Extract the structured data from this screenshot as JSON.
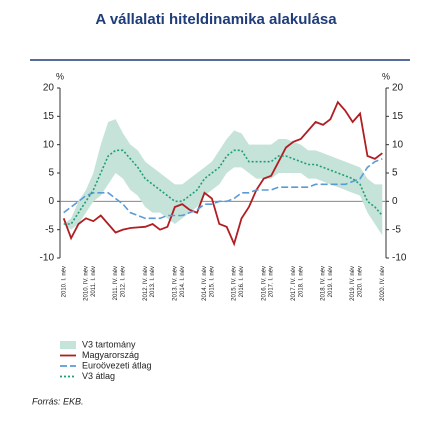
{
  "chart_data": {
    "type": "line",
    "title": "A vállalati hiteldinamika alakulása",
    "y_label": "%",
    "y2_label": "%",
    "source": "Forrás: EKB.",
    "categories": [
      "2010. I. név",
      null,
      null,
      "2010. IV. név",
      "2011. I. név",
      null,
      null,
      "2011. IV. név",
      "2012. I. név",
      null,
      null,
      "2012. IV. név",
      "2013. I. név",
      null,
      null,
      "2013. IV. név",
      "2014. I. név",
      null,
      null,
      "2014. IV. név",
      "2015. I. név",
      null,
      null,
      "2015. IV. név",
      "2016. I. név",
      null,
      null,
      "2016. IV. név",
      "2017. I. név",
      null,
      null,
      "2017. IV. név",
      "2018. I. név",
      null,
      null,
      "2018. IV. név",
      "2019. I. név",
      null,
      null,
      "2019. IV. név",
      "2020. I. név",
      null,
      null,
      "2020. IV. név"
    ],
    "band": {
      "name": "V3 tartomány",
      "color": "#c5e3d8",
      "high": [
        -4,
        -3,
        0,
        2,
        5,
        10,
        14,
        14.5,
        12,
        10,
        9,
        7,
        6,
        5,
        4,
        3,
        3,
        4,
        5,
        6,
        7,
        9,
        11,
        12.5,
        12,
        10,
        10,
        10,
        10,
        11,
        11,
        10.5,
        10,
        9,
        9,
        8.5,
        8,
        7.5,
        7,
        6.5,
        6,
        4,
        3,
        3
      ],
      "low": [
        -4,
        -5,
        -4,
        -2,
        0,
        1,
        3,
        5,
        4,
        2,
        1,
        -1,
        -2,
        -2,
        -3,
        -4,
        -3,
        -2,
        -1,
        1,
        2,
        3,
        5,
        6,
        6,
        5,
        4,
        4,
        4,
        5,
        5,
        5,
        5,
        4,
        4,
        3.5,
        3,
        2.5,
        2,
        1.5,
        1,
        -2,
        -4,
        -6
      ]
    },
    "series": [
      {
        "name": "Magyarország",
        "color": "#b01e23",
        "dash": "solid",
        "values": [
          -3,
          -6.5,
          -4,
          -3,
          -3.5,
          -2.5,
          -4,
          -5.5,
          -5,
          -4.7,
          -4.6,
          -4.5,
          -4,
          -5,
          -4.5,
          -1,
          -0.5,
          -1.5,
          -2,
          1.5,
          0.5,
          -4,
          -4.5,
          -7.5,
          -3,
          -1,
          2,
          4,
          4.5,
          7,
          9.5,
          10.5,
          11,
          12.5,
          14,
          13.5,
          14.5,
          17.5,
          16,
          14,
          15.5,
          8,
          7.5,
          8.5
        ]
      },
      {
        "name": "Euroövezeti átlag",
        "color": "#5b9bd5",
        "dash": "dashed",
        "values": [
          -2,
          -1,
          0,
          1,
          1.5,
          1.5,
          1.5,
          0.5,
          -0.5,
          -2,
          -2.5,
          -3,
          -3,
          -3,
          -2.5,
          -2.5,
          -2.5,
          -2,
          -1.5,
          -0.5,
          -0.5,
          0,
          0,
          0.5,
          1.5,
          1.5,
          2,
          2,
          2,
          2.5,
          2.5,
          2.5,
          2.5,
          2.5,
          3,
          3,
          3,
          3,
          3,
          3.5,
          4,
          6,
          7,
          7.5
        ]
      },
      {
        "name": "V3 átlag",
        "color": "#1f9e7a",
        "dash": "dotted",
        "values": [
          -4,
          -4,
          -2,
          0,
          2,
          5,
          8,
          9,
          9,
          7.5,
          6,
          4,
          3,
          2,
          1,
          0,
          0,
          1,
          2,
          4,
          5,
          6,
          8,
          9,
          9,
          7,
          7,
          7,
          7,
          8,
          8,
          7.5,
          7,
          6.5,
          6.5,
          6,
          5.5,
          5,
          4.5,
          4,
          3,
          0,
          -1,
          -2.5
        ]
      }
    ],
    "ylim": [
      -10,
      20
    ],
    "yticks": [
      -10,
      -5,
      0,
      5,
      10,
      15,
      20
    ],
    "y2lim": [
      -10,
      20
    ],
    "y2ticks": [
      -10,
      -5,
      0,
      5,
      10,
      15,
      20
    ],
    "grid": false
  }
}
